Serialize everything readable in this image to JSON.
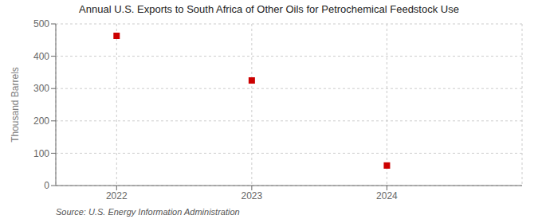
{
  "chart_data": {
    "type": "scatter",
    "title": "Annual U.S. Exports to South Africa of Other Oils for Petrochemical Feedstock Use",
    "ylabel": "Thousand Barrels",
    "annotations": [
      "Source: U.S. Energy Information Administration"
    ],
    "x": [
      2022,
      2023,
      2024
    ],
    "values": [
      463,
      325,
      62
    ],
    "xlim": [
      2021.55,
      2025.0
    ],
    "xticks": [
      2022,
      2023,
      2024
    ],
    "ylim": [
      0,
      500
    ],
    "yticks": [
      0,
      100,
      200,
      300,
      400,
      500
    ],
    "grid": true,
    "marker": "square",
    "color": "#cc0000"
  }
}
